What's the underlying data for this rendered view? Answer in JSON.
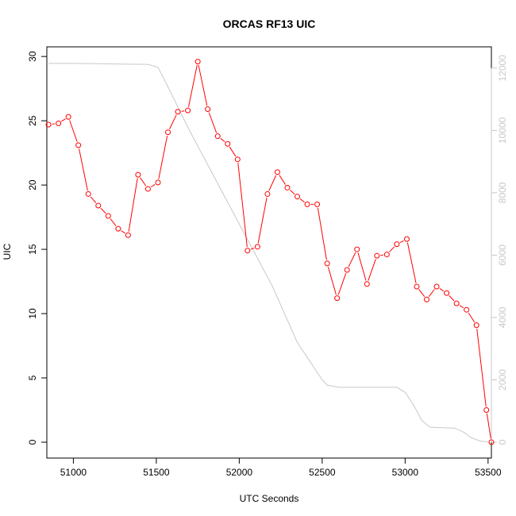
{
  "chart_data": {
    "type": "line",
    "title": "ORCAS RF13 UIC",
    "xlabel": "UTC Seconds",
    "ylabel": "UIC",
    "xlim": [
      50840,
      53520
    ],
    "ylim": [
      0,
      29.7
    ],
    "y2lim": [
      0,
      12250
    ],
    "x_ticks": [
      "51000",
      "51500",
      "52000",
      "52500",
      "53000",
      "53500"
    ],
    "x_tick_values": [
      51000,
      51500,
      52000,
      52500,
      53000,
      53500
    ],
    "y_ticks": [
      "0",
      "5",
      "10",
      "15",
      "20",
      "25",
      "30"
    ],
    "y_tick_values": [
      0,
      5,
      10,
      15,
      20,
      25,
      30
    ],
    "y2_ticks": [
      "0",
      "2000",
      "4000",
      "6000",
      "8000",
      "10000",
      "12000"
    ],
    "y2_tick_values": [
      0,
      2000,
      4000,
      6000,
      8000,
      10000,
      12000
    ],
    "grid": false,
    "series": [
      {
        "color": "#ff0000",
        "axis": "left",
        "marker": "open-circle",
        "x": [
          50850,
          50910,
          50970,
          51030,
          51090,
          51150,
          51210,
          51270,
          51330,
          51390,
          51450,
          51510,
          51570,
          51630,
          51690,
          51750,
          51810,
          51870,
          51930,
          51990,
          52050,
          52110,
          52170,
          52230,
          52290,
          52350,
          52410,
          52470,
          52530,
          52590,
          52650,
          52710,
          52770,
          52830,
          52890,
          52950,
          53010,
          53070,
          53130,
          53190,
          53250,
          53310,
          53370,
          53430,
          53490,
          53520
        ],
        "values": [
          24.7,
          24.8,
          25.3,
          23.1,
          19.3,
          18.4,
          17.6,
          16.6,
          16.1,
          20.8,
          19.7,
          20.2,
          24.1,
          25.7,
          25.8,
          29.6,
          25.9,
          23.8,
          23.2,
          22.0,
          14.9,
          15.2,
          19.3,
          21.0,
          19.8,
          19.1,
          18.5,
          18.5,
          13.9,
          11.2,
          13.4,
          15.0,
          12.3,
          14.5,
          14.6,
          15.4,
          15.8,
          12.1,
          11.1,
          12.1,
          11.6,
          10.8,
          10.3,
          9.1,
          2.5,
          0.0
        ]
      },
      {
        "color": "#c8c8c8",
        "axis": "right",
        "marker": "none",
        "x": [
          50850,
          51000,
          51200,
          51300,
          51450,
          51510,
          51570,
          51700,
          51900,
          52100,
          52200,
          52350,
          52450,
          52500,
          52530,
          52600,
          52900,
          52950,
          53000,
          53050,
          53100,
          53150,
          53250,
          53300,
          53350,
          53400,
          53450,
          53500
        ],
        "values": [
          12150,
          12150,
          12140,
          12130,
          12120,
          12030,
          11400,
          10000,
          8000,
          6000,
          5000,
          3200,
          2400,
          2000,
          1830,
          1760,
          1760,
          1760,
          1600,
          1200,
          700,
          480,
          460,
          450,
          330,
          140,
          40,
          0
        ]
      }
    ]
  }
}
